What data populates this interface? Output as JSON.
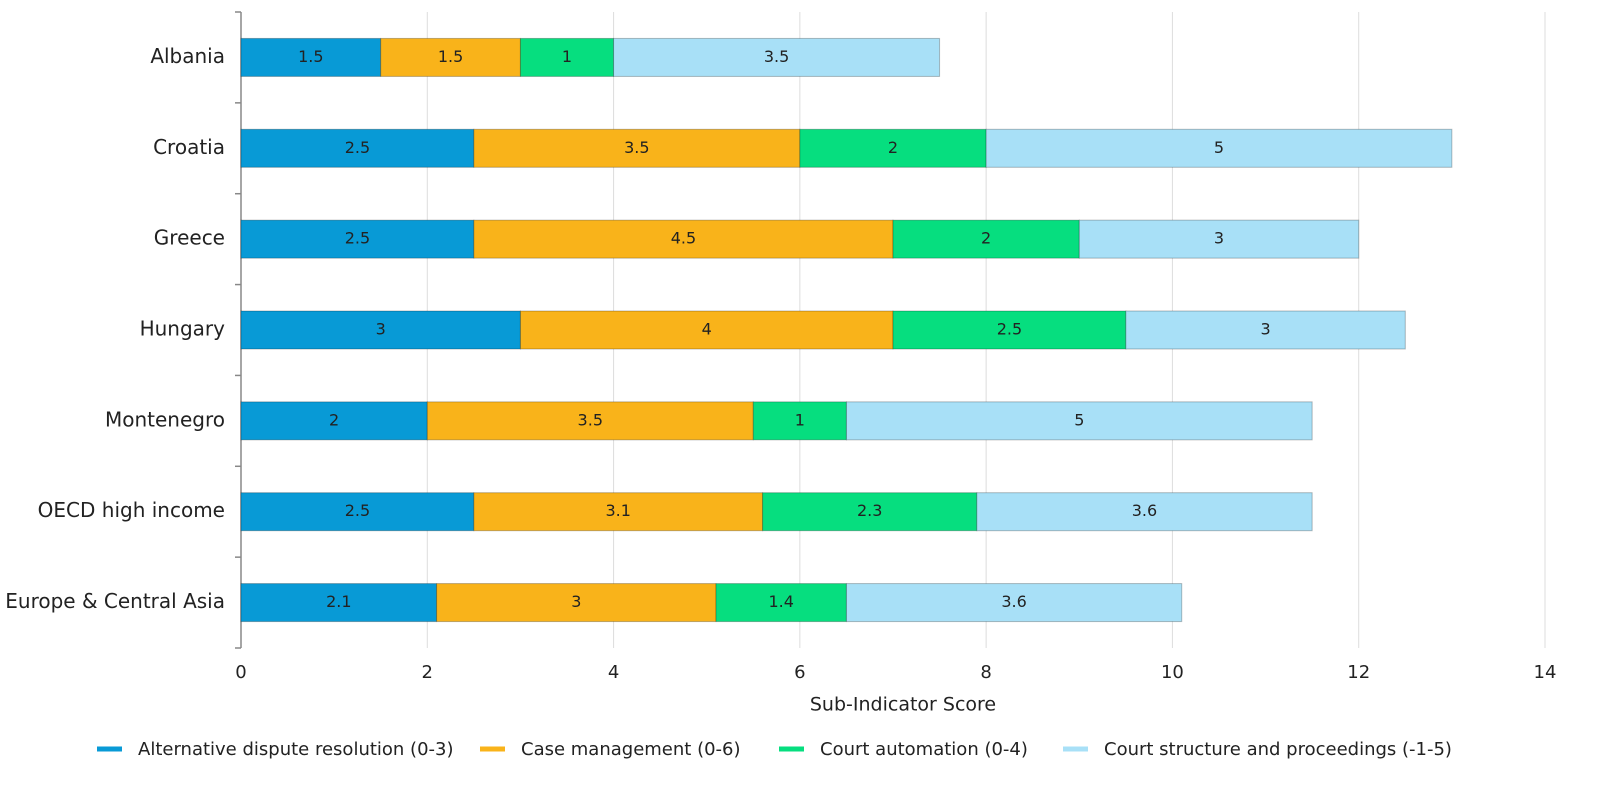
{
  "chart_data": {
    "type": "stacked_barh",
    "xlabel": "Sub-Indicator Score",
    "categories": [
      "Albania",
      "Croatia",
      "Greece",
      "Hungary",
      "Montenegro",
      "OECD high income",
      "Europe & Central Asia"
    ],
    "series": [
      {
        "name": "Alternative dispute resolution (0-3)",
        "color": "#089ad6",
        "values": [
          1.5,
          2.5,
          2.5,
          3,
          2,
          2.5,
          2.1
        ]
      },
      {
        "name": "Case management (0-6)",
        "color": "#f9b31a",
        "values": [
          1.5,
          3.5,
          4.5,
          4,
          3.5,
          3.1,
          3
        ]
      },
      {
        "name": "Court automation (0-4)",
        "color": "#06de7f",
        "values": [
          1,
          2,
          2,
          2.5,
          1,
          2.3,
          1.4
        ]
      },
      {
        "name": "Court structure and proceedings (-1-5)",
        "color": "#a8e0f7",
        "values": [
          3.5,
          5,
          3,
          3,
          5,
          3.6,
          3.6
        ]
      }
    ],
    "xlim": [
      0,
      14
    ],
    "xticks": [
      0,
      2,
      4,
      6,
      8,
      10,
      12,
      14
    ],
    "grid": true,
    "legend": "bottom"
  }
}
